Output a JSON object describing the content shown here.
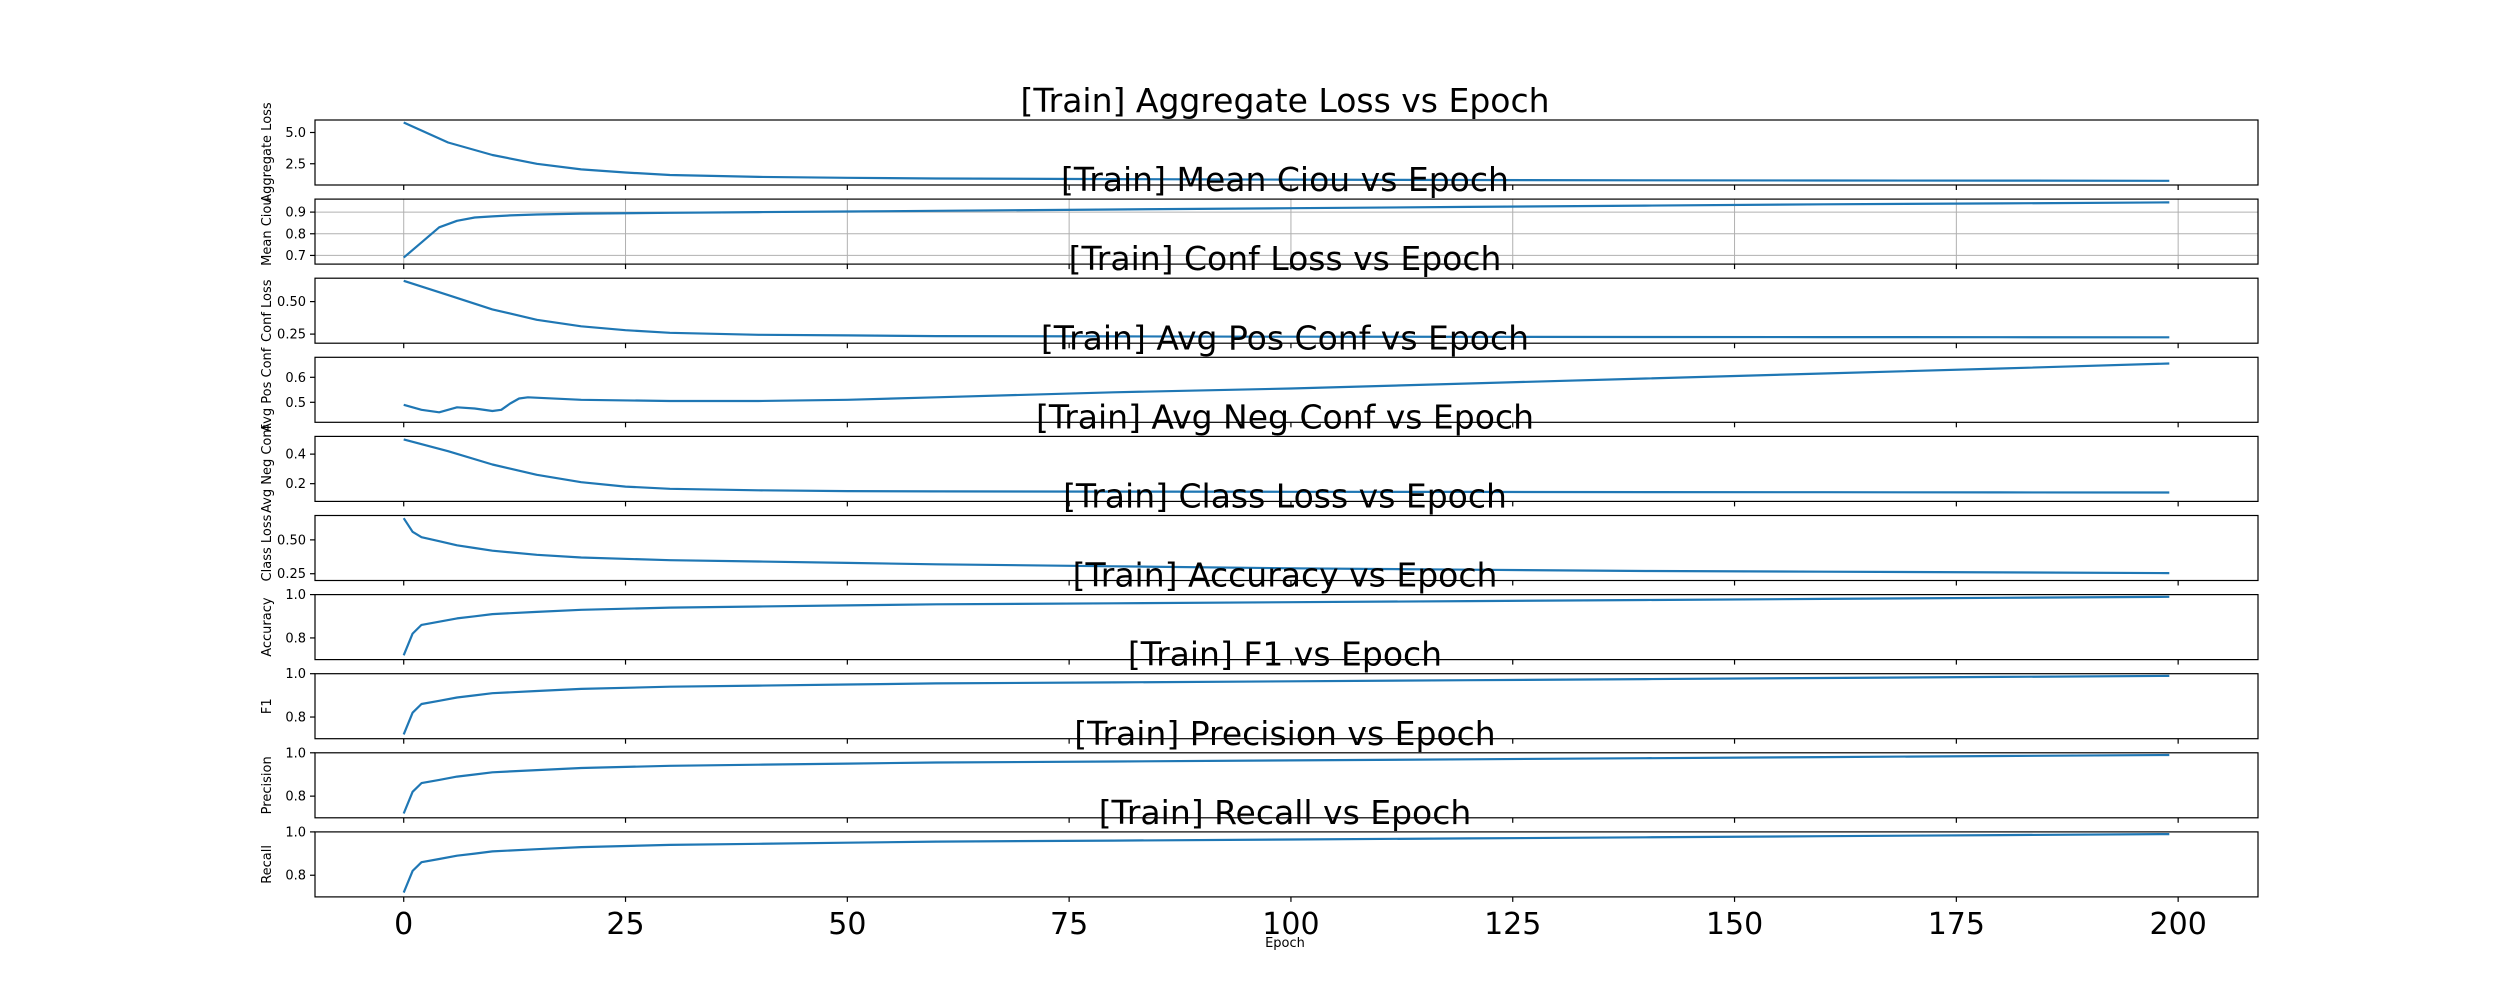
{
  "figure": {
    "xlabel": "Epoch",
    "xlim": [
      -10,
      209
    ],
    "xticks": [
      0,
      25,
      50,
      75,
      100,
      125,
      150,
      175,
      200
    ]
  },
  "chart_data": [
    {
      "type": "line",
      "title": "[Train] Aggregate Loss vs Epoch",
      "ylabel": "Aggregate Loss",
      "ylim": [
        0.8,
        6.0
      ],
      "yticks": [
        2.5,
        5.0
      ],
      "ytick_labels": [
        "2.5",
        "5.0"
      ],
      "grid": false,
      "series": [
        {
          "x": [
            0,
            5,
            10,
            15,
            20,
            25,
            30,
            40,
            50,
            60,
            80,
            100,
            120,
            140,
            160,
            180,
            199
          ],
          "y": [
            5.8,
            4.2,
            3.2,
            2.5,
            2.05,
            1.8,
            1.6,
            1.45,
            1.38,
            1.32,
            1.27,
            1.23,
            1.2,
            1.18,
            1.16,
            1.15,
            1.14
          ]
        }
      ]
    },
    {
      "type": "line",
      "title": "[Train] Mean Ciou vs Epoch",
      "ylabel": "Mean Ciou",
      "ylim": [
        0.66,
        0.96
      ],
      "yticks": [
        0.7,
        0.8,
        0.9
      ],
      "ytick_labels": [
        "0.7",
        "0.8",
        "0.9"
      ],
      "grid": true,
      "series": [
        {
          "x": [
            0,
            2,
            4,
            6,
            8,
            10,
            12,
            15,
            20,
            30,
            40,
            50,
            60,
            80,
            100,
            120,
            140,
            160,
            180,
            199
          ],
          "y": [
            0.69,
            0.76,
            0.83,
            0.86,
            0.875,
            0.88,
            0.885,
            0.889,
            0.893,
            0.897,
            0.9,
            0.903,
            0.906,
            0.912,
            0.918,
            0.924,
            0.93,
            0.936,
            0.94,
            0.945
          ]
        }
      ]
    },
    {
      "type": "line",
      "title": "[Train] Conf Loss vs Epoch",
      "ylabel": "Conf Loss",
      "ylim": [
        0.18,
        0.68
      ],
      "yticks": [
        0.25,
        0.5
      ],
      "ytick_labels": [
        "0.25",
        "0.50"
      ],
      "grid": false,
      "series": [
        {
          "x": [
            0,
            5,
            10,
            15,
            20,
            25,
            30,
            40,
            50,
            60,
            80,
            100,
            120,
            140,
            160,
            180,
            199
          ],
          "y": [
            0.66,
            0.55,
            0.44,
            0.36,
            0.31,
            0.28,
            0.26,
            0.245,
            0.24,
            0.235,
            0.232,
            0.23,
            0.229,
            0.228,
            0.227,
            0.226,
            0.225
          ]
        }
      ]
    },
    {
      "type": "line",
      "title": "[Train] Avg Pos Conf vs Epoch",
      "ylabel": "Avg Pos Conf",
      "ylim": [
        0.42,
        0.68
      ],
      "yticks": [
        0.5,
        0.6
      ],
      "ytick_labels": [
        "0.5",
        "0.6"
      ],
      "grid": false,
      "series": [
        {
          "x": [
            0,
            2,
            4,
            6,
            8,
            10,
            11,
            12,
            13,
            14,
            20,
            30,
            40,
            50,
            60,
            70,
            80,
            100,
            120,
            140,
            160,
            180,
            199
          ],
          "y": [
            0.49,
            0.47,
            0.46,
            0.48,
            0.475,
            0.465,
            0.47,
            0.495,
            0.515,
            0.52,
            0.51,
            0.505,
            0.505,
            0.51,
            0.52,
            0.53,
            0.54,
            0.555,
            0.575,
            0.595,
            0.615,
            0.635,
            0.655
          ]
        }
      ]
    },
    {
      "type": "line",
      "title": "[Train] Avg Neg Conf vs Epoch",
      "ylabel": "Avg Neg Conf",
      "ylim": [
        0.08,
        0.52
      ],
      "yticks": [
        0.2,
        0.4
      ],
      "ytick_labels": [
        "0.2",
        "0.4"
      ],
      "grid": false,
      "series": [
        {
          "x": [
            0,
            5,
            10,
            15,
            20,
            25,
            30,
            40,
            50,
            60,
            80,
            100,
            120,
            140,
            160,
            180,
            199
          ],
          "y": [
            0.5,
            0.42,
            0.33,
            0.26,
            0.21,
            0.18,
            0.165,
            0.155,
            0.15,
            0.148,
            0.146,
            0.145,
            0.144,
            0.143,
            0.142,
            0.141,
            0.14
          ]
        }
      ]
    },
    {
      "type": "line",
      "title": "[Train] Class Loss vs Epoch",
      "ylabel": "Class Loss",
      "ylim": [
        0.2,
        0.68
      ],
      "yticks": [
        0.25,
        0.5
      ],
      "ytick_labels": [
        "0.25",
        "0.50"
      ],
      "grid": false,
      "series": [
        {
          "x": [
            0,
            1,
            2,
            4,
            6,
            8,
            10,
            15,
            20,
            30,
            40,
            50,
            60,
            80,
            100,
            120,
            140,
            160,
            180,
            199
          ],
          "y": [
            0.66,
            0.56,
            0.52,
            0.49,
            0.46,
            0.44,
            0.42,
            0.39,
            0.37,
            0.35,
            0.34,
            0.33,
            0.32,
            0.305,
            0.29,
            0.28,
            0.27,
            0.265,
            0.26,
            0.255
          ]
        }
      ]
    },
    {
      "type": "line",
      "title": "[Train] Accuracy vs Epoch",
      "ylabel": "Accuracy",
      "ylim": [
        0.7,
        1.0
      ],
      "yticks": [
        0.8,
        1.0
      ],
      "ytick_labels": [
        "0.8",
        "1.0"
      ],
      "grid": false,
      "series": [
        {
          "x": [
            0,
            1,
            2,
            4,
            6,
            8,
            10,
            15,
            20,
            30,
            40,
            50,
            60,
            80,
            100,
            120,
            140,
            160,
            180,
            199
          ],
          "y": [
            0.72,
            0.82,
            0.86,
            0.875,
            0.89,
            0.9,
            0.91,
            0.92,
            0.93,
            0.94,
            0.945,
            0.95,
            0.955,
            0.96,
            0.965,
            0.97,
            0.975,
            0.98,
            0.985,
            0.99
          ]
        }
      ]
    },
    {
      "type": "line",
      "title": "[Train] F1 vs Epoch",
      "ylabel": "F1",
      "ylim": [
        0.7,
        1.0
      ],
      "yticks": [
        0.8,
        1.0
      ],
      "ytick_labels": [
        "0.8",
        "1.0"
      ],
      "grid": false,
      "series": [
        {
          "x": [
            0,
            1,
            2,
            4,
            6,
            8,
            10,
            15,
            20,
            30,
            40,
            50,
            60,
            80,
            100,
            120,
            140,
            160,
            180,
            199
          ],
          "y": [
            0.72,
            0.82,
            0.86,
            0.875,
            0.89,
            0.9,
            0.91,
            0.92,
            0.93,
            0.94,
            0.945,
            0.95,
            0.955,
            0.96,
            0.965,
            0.97,
            0.975,
            0.98,
            0.985,
            0.99
          ]
        }
      ]
    },
    {
      "type": "line",
      "title": "[Train] Precision vs Epoch",
      "ylabel": "Precision",
      "ylim": [
        0.7,
        1.0
      ],
      "yticks": [
        0.8,
        1.0
      ],
      "ytick_labels": [
        "0.8",
        "1.0"
      ],
      "grid": false,
      "series": [
        {
          "x": [
            0,
            1,
            2,
            4,
            6,
            8,
            10,
            15,
            20,
            30,
            40,
            50,
            60,
            80,
            100,
            120,
            140,
            160,
            180,
            199
          ],
          "y": [
            0.72,
            0.82,
            0.86,
            0.875,
            0.89,
            0.9,
            0.91,
            0.92,
            0.93,
            0.94,
            0.945,
            0.95,
            0.955,
            0.96,
            0.965,
            0.97,
            0.975,
            0.98,
            0.985,
            0.99
          ]
        }
      ]
    },
    {
      "type": "line",
      "title": "[Train] Recall vs Epoch",
      "ylabel": "Recall",
      "ylim": [
        0.7,
        1.0
      ],
      "yticks": [
        0.8,
        1.0
      ],
      "ytick_labels": [
        "0.8",
        "1.0"
      ],
      "grid": false,
      "series": [
        {
          "x": [
            0,
            1,
            2,
            4,
            6,
            8,
            10,
            15,
            20,
            30,
            40,
            50,
            60,
            80,
            100,
            120,
            140,
            160,
            180,
            199
          ],
          "y": [
            0.72,
            0.82,
            0.86,
            0.875,
            0.89,
            0.9,
            0.91,
            0.92,
            0.93,
            0.94,
            0.945,
            0.95,
            0.955,
            0.96,
            0.965,
            0.97,
            0.975,
            0.98,
            0.985,
            0.99
          ]
        }
      ]
    }
  ]
}
